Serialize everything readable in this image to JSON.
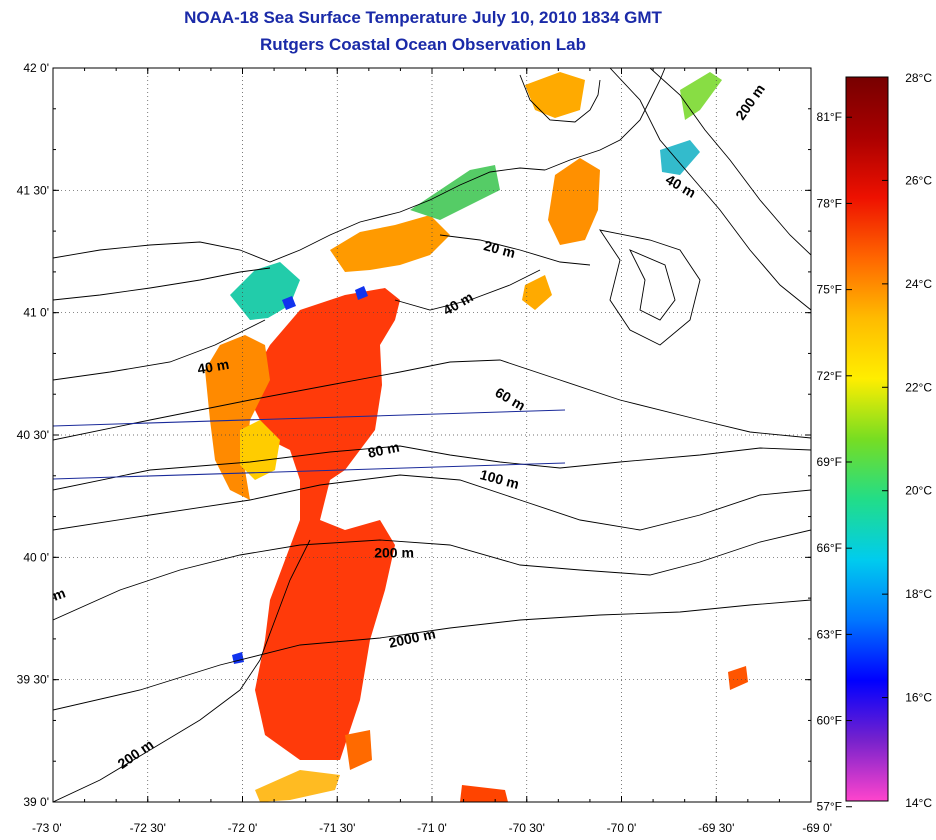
{
  "title": "NOAA-18 Sea Surface Temperature July 10, 2010 1834 GMT",
  "subtitle": "Rutgers Coastal Ocean Observation Lab",
  "map": {
    "lon_range": [
      -73.0,
      -69.0
    ],
    "lat_range": [
      39.0,
      42.0
    ],
    "grid": "dotted",
    "lon_ticks": [
      {
        "value": -73.0,
        "label": "-73 0'"
      },
      {
        "value": -72.5,
        "label": "-72 30'"
      },
      {
        "value": -72.0,
        "label": "-72 0'"
      },
      {
        "value": -71.5,
        "label": "-71 30'"
      },
      {
        "value": -71.0,
        "label": "-71 0'"
      },
      {
        "value": -70.5,
        "label": "-70 30'"
      },
      {
        "value": -70.0,
        "label": "-70 0'"
      },
      {
        "value": -69.5,
        "label": "-69 30'"
      },
      {
        "value": -69.0,
        "label": "-69 0'"
      }
    ],
    "lat_ticks": [
      {
        "value": 39.0,
        "label": "39 0'"
      },
      {
        "value": 39.5,
        "label": "39 30'"
      },
      {
        "value": 40.0,
        "label": "40 0'"
      },
      {
        "value": 40.5,
        "label": "40 30'"
      },
      {
        "value": 41.0,
        "label": "41 0'"
      },
      {
        "value": 41.5,
        "label": "41 30'"
      },
      {
        "value": 42.0,
        "label": "42 0'"
      }
    ],
    "contour_labels": [
      {
        "text": "200 m",
        "lon": -69.3,
        "lat": 41.85,
        "angle": -55
      },
      {
        "text": "40 m",
        "lon": -69.7,
        "lat": 41.5,
        "angle": 30
      },
      {
        "text": "20 m",
        "lon": -70.65,
        "lat": 41.24,
        "angle": 15
      },
      {
        "text": "40 m",
        "lon": -70.85,
        "lat": 41.02,
        "angle": -30
      },
      {
        "text": "40 m",
        "lon": -72.15,
        "lat": 40.76,
        "angle": -10
      },
      {
        "text": "60 m",
        "lon": -70.6,
        "lat": 40.63,
        "angle": 30
      },
      {
        "text": "80 m",
        "lon": -71.25,
        "lat": 40.42,
        "angle": -12
      },
      {
        "text": "100 m",
        "lon": -70.65,
        "lat": 40.3,
        "angle": 15
      },
      {
        "text": "200 m",
        "lon": -71.2,
        "lat": 40.0,
        "angle": 0
      },
      {
        "text": "2000 m",
        "lon": -71.1,
        "lat": 39.65,
        "angle": -12
      },
      {
        "text": "200 m",
        "lon": -72.55,
        "lat": 39.18,
        "angle": -35
      },
      {
        "text": "m",
        "lon": -72.96,
        "lat": 39.83,
        "angle": -20
      }
    ]
  },
  "colorbar": {
    "celsius_ticks": [
      {
        "value": 28,
        "label": "28°C"
      },
      {
        "value": 26,
        "label": "26°C"
      },
      {
        "value": 24,
        "label": "24°C"
      },
      {
        "value": 22,
        "label": "22°C"
      },
      {
        "value": 20,
        "label": "20°C"
      },
      {
        "value": 18,
        "label": "18°C"
      },
      {
        "value": 16,
        "label": "16°C"
      },
      {
        "value": 14,
        "label": "14°C"
      }
    ],
    "fahrenheit_ticks": [
      {
        "value": 81,
        "label": "81°F"
      },
      {
        "value": 78,
        "label": "78°F"
      },
      {
        "value": 75,
        "label": "75°F"
      },
      {
        "value": 72,
        "label": "72°F"
      },
      {
        "value": 69,
        "label": "69°F"
      },
      {
        "value": 66,
        "label": "66°F"
      },
      {
        "value": 63,
        "label": "63°F"
      },
      {
        "value": 60,
        "label": "60°F"
      },
      {
        "value": 57,
        "label": "57°F"
      }
    ],
    "range_c": [
      14,
      28
    ],
    "colors": [
      "#ff44cc",
      "#7722cc",
      "#0000ff",
      "#0077ff",
      "#00ccee",
      "#22dd88",
      "#77dd22",
      "#ffee00",
      "#ffbb00",
      "#ff6600",
      "#ee1100",
      "#aa0000",
      "#770000"
    ]
  }
}
